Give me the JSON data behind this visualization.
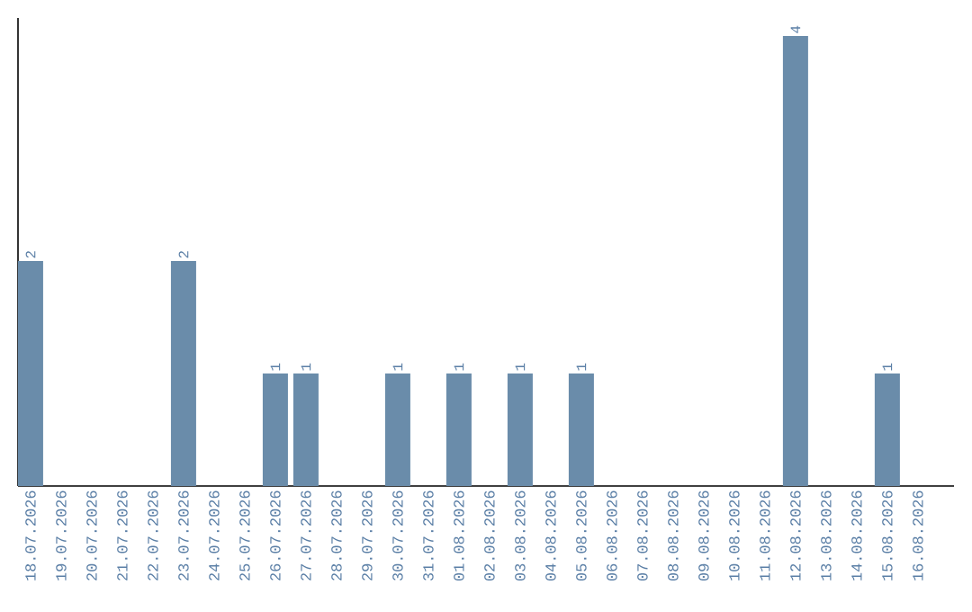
{
  "chart_data": {
    "type": "bar",
    "categories": [
      "18.07.2026",
      "19.07.2026",
      "20.07.2026",
      "21.07.2026",
      "22.07.2026",
      "23.07.2026",
      "24.07.2026",
      "25.07.2026",
      "26.07.2026",
      "27.07.2026",
      "28.07.2026",
      "29.07.2026",
      "30.07.2026",
      "31.07.2026",
      "01.08.2026",
      "02.08.2026",
      "03.08.2026",
      "04.08.2026",
      "05.08.2026",
      "06.08.2026",
      "07.08.2026",
      "08.08.2026",
      "09.08.2026",
      "10.08.2026",
      "11.08.2026",
      "12.08.2026",
      "13.08.2026",
      "14.08.2026",
      "15.08.2026",
      "16.08.2026"
    ],
    "values": [
      2,
      0,
      0,
      0,
      0,
      2,
      0,
      0,
      1,
      1,
      0,
      0,
      1,
      0,
      1,
      0,
      1,
      0,
      1,
      0,
      0,
      0,
      0,
      0,
      0,
      4,
      0,
      0,
      1,
      0
    ],
    "value_labels": [
      "2",
      null,
      null,
      null,
      null,
      "2",
      null,
      null,
      "1",
      "1",
      null,
      null,
      "1",
      null,
      "1",
      null,
      "1",
      null,
      "1",
      null,
      null,
      null,
      null,
      null,
      null,
      "4",
      null,
      null,
      "1",
      null
    ],
    "color": "#6a8caa"
  }
}
